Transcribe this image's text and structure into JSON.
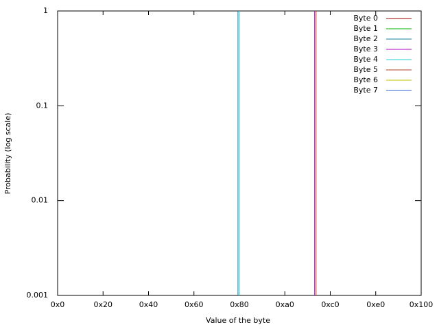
{
  "chart_data": {
    "type": "impulse",
    "xlabel": "Value of the byte",
    "ylabel": "Probability (log scale)",
    "ylog": true,
    "xlim": [
      0,
      256
    ],
    "ylim": [
      0.001,
      1
    ],
    "xticks": [
      {
        "value": 0,
        "label": "0x0"
      },
      {
        "value": 32,
        "label": "0x20"
      },
      {
        "value": 64,
        "label": "0x40"
      },
      {
        "value": 96,
        "label": "0x60"
      },
      {
        "value": 128,
        "label": "0x80"
      },
      {
        "value": 160,
        "label": "0xa0"
      },
      {
        "value": 192,
        "label": "0xc0"
      },
      {
        "value": 224,
        "label": "0xe0"
      },
      {
        "value": 256,
        "label": "0x100"
      }
    ],
    "yticks": [
      0.001,
      0.01,
      0.1,
      1
    ],
    "legend": "top-right",
    "series": [
      {
        "name": "Byte 0",
        "color": "#a00000",
        "x": [],
        "values": []
      },
      {
        "name": "Byte 1",
        "color": "#00b000",
        "x": [],
        "values": []
      },
      {
        "name": "Byte 2",
        "color": "#1080a0",
        "x": [
          127
        ],
        "values": [
          1
        ]
      },
      {
        "name": "Byte 3",
        "color": "#b000c0",
        "x": [
          181
        ],
        "values": [
          1
        ]
      },
      {
        "name": "Byte 4",
        "color": "#20d0d0",
        "x": [
          128
        ],
        "values": [
          1
        ]
      },
      {
        "name": "Byte 5",
        "color": "#b04020",
        "x": [
          182
        ],
        "values": [
          1
        ]
      },
      {
        "name": "Byte 6",
        "color": "#c0c000",
        "x": [],
        "values": []
      },
      {
        "name": "Byte 7",
        "color": "#3060d0",
        "x": [],
        "values": []
      }
    ]
  }
}
